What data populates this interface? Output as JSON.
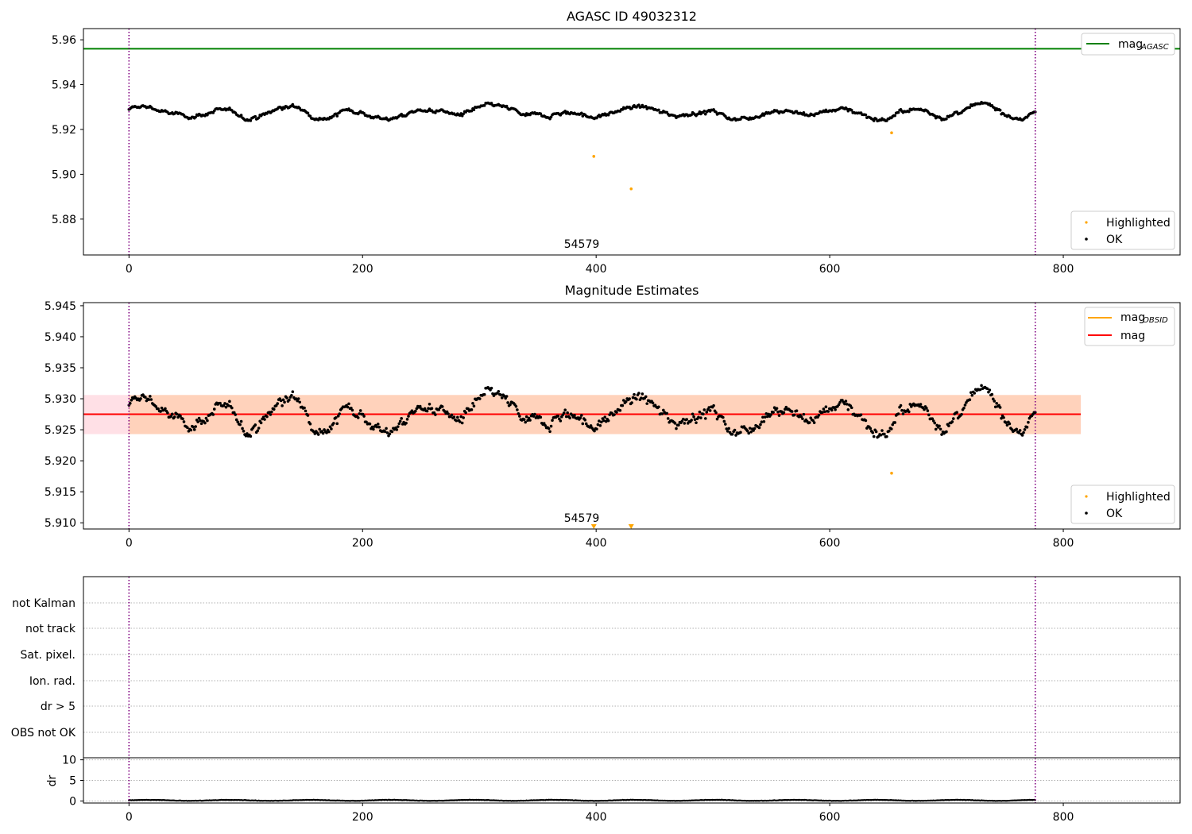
{
  "chart_data": [
    {
      "type": "scatter",
      "title": "AGASC ID 49032312",
      "xlim": [
        -39,
        900
      ],
      "ylim": [
        5.864,
        5.965
      ],
      "xticks": [
        "0",
        "200",
        "400",
        "600",
        "800"
      ],
      "yticks": [
        "5.88",
        "5.90",
        "5.92",
        "5.94",
        "5.96"
      ],
      "mag_agasc": 5.956,
      "vlines": [
        0,
        776
      ],
      "obsid_label": "54579",
      "obsid_label_x": 385,
      "legend_lines": [
        {
          "name": "mag",
          "sub": "AGASC",
          "color": "#008000"
        }
      ],
      "legend_points": [
        {
          "name": "Highlighted",
          "color": "#ffa500"
        },
        {
          "name": "OK",
          "color": "#000000"
        }
      ],
      "highlighted": [
        {
          "x": 398,
          "y": 5.908
        },
        {
          "x": 430,
          "y": 5.8935
        },
        {
          "x": 653,
          "y": 5.9185
        }
      ],
      "ok_series": {
        "x_start": 0,
        "x_end": 776,
        "n": 776,
        "baseline": 5.9275
      },
      "grid": false
    },
    {
      "type": "scatter",
      "title": "Magnitude Estimates",
      "xlim": [
        -39,
        900
      ],
      "ylim": [
        5.909,
        5.9455
      ],
      "xticks": [
        "0",
        "200",
        "400",
        "600",
        "800"
      ],
      "yticks": [
        "5.910",
        "5.915",
        "5.920",
        "5.925",
        "5.930",
        "5.935",
        "5.940",
        "5.945"
      ],
      "mag": 5.9275,
      "band": [
        5.9243,
        5.9306
      ],
      "band_x": [
        -39,
        815
      ],
      "obsid_band_x": [
        0,
        815
      ],
      "mag_obsid": {
        "y": 5.9275,
        "x": [
          0,
          776
        ]
      },
      "vlines": [
        0,
        776
      ],
      "obsid_label": "54579",
      "obsid_label_x": 385,
      "legend_lines": [
        {
          "name": "mag",
          "sub": "OBSID",
          "color": "#ffa500"
        },
        {
          "name": "mag",
          "sub": "",
          "color": "#ff0000"
        }
      ],
      "legend_points": [
        {
          "name": "Highlighted",
          "color": "#ffa500"
        },
        {
          "name": "OK",
          "color": "#000000"
        }
      ],
      "highlighted": [
        {
          "x": 653,
          "y": 5.918
        }
      ],
      "off_scale_markers": [
        {
          "x": 398
        },
        {
          "x": 430
        }
      ],
      "ok_series": {
        "x_start": 0,
        "x_end": 776,
        "n": 776,
        "baseline": 5.9275
      },
      "grid": false
    },
    {
      "type": "scatter",
      "title": "",
      "xlim": [
        -39,
        900
      ],
      "categories": [
        "not Kalman",
        "not track",
        "Sat. pixel.",
        "Ion. rad.",
        "dr > 5",
        "OBS not OK"
      ],
      "flag_points": [],
      "vlines": [
        0,
        776
      ],
      "grid": true
    },
    {
      "type": "line",
      "title": "",
      "xlim": [
        -39,
        900
      ],
      "ylim": [
        -0.5,
        10.5
      ],
      "ylabel": "dr",
      "yticks": [
        "0",
        "5",
        "10"
      ],
      "xticks": [
        "0",
        "200",
        "400",
        "600",
        "800"
      ],
      "dr_series": {
        "x_start": 0,
        "x_end": 776,
        "n": 776,
        "mean": 0.15
      },
      "vlines": [
        0,
        776
      ],
      "grid": true
    }
  ],
  "colors": {
    "ok": "#000000",
    "highlighted": "#ffa500",
    "mag_agasc": "#008000",
    "mag": "#ff0000",
    "mag_obsid": "#ffa500",
    "band_outer": "#ffe0e6",
    "band_inner": "#ffd2bb",
    "vline": "#800080",
    "grid": "#b0b0b0"
  }
}
